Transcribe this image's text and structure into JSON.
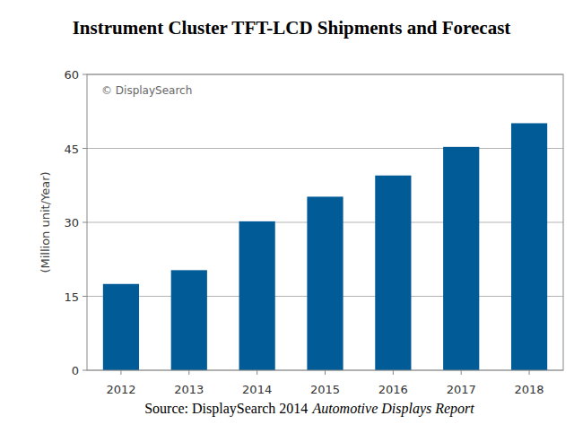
{
  "chart_data": {
    "type": "bar",
    "title": "Instrument Cluster TFT-LCD Shipments and Forecast",
    "y_label": "(Million unit/Year)",
    "annotations": [
      "© DisplaySearch"
    ],
    "source": "Source: DisplaySearch 2014",
    "source_title": "Automotive Displays Report",
    "categories": [
      "2012",
      "2013",
      "2014",
      "2015",
      "2016",
      "2017",
      "2018"
    ],
    "values": [
      17.5,
      20.3,
      30.2,
      35.2,
      39.5,
      45.3,
      50.1
    ],
    "color": "#005b96",
    "ylim": [
      0,
      60
    ],
    "yticks": [
      0,
      15,
      30,
      45,
      60
    ],
    "grid": true
  }
}
